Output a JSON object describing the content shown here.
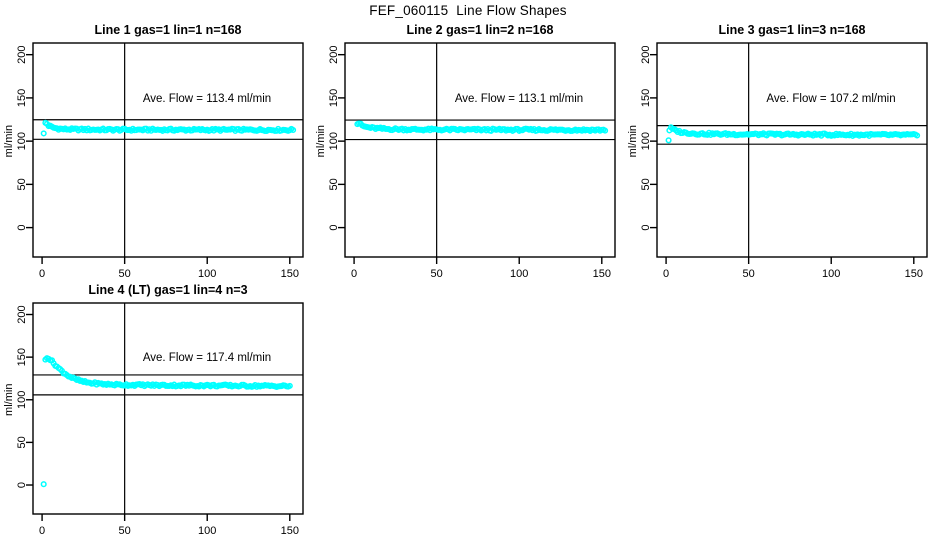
{
  "page": {
    "title": "FEF_060115  Line Flow Shapes"
  },
  "colors": {
    "marker": "#00ffff",
    "axis": "#000000",
    "background": "#ffffff"
  },
  "chart_data": [
    {
      "type": "scatter",
      "title": "Line 1 gas=1 lin=1 n=168",
      "annotation": "Ave. Flow =  113.4  ml/min",
      "ave_flow_ml_min": 113.4,
      "n_points": 168,
      "ylabel": "ml/min",
      "xlabel": "",
      "xticks": [
        0,
        50,
        100,
        150
      ],
      "yticks": [
        0,
        50,
        100,
        150,
        200
      ],
      "xlim": [
        -5.5,
        158
      ],
      "ylim": [
        -34,
        213.5
      ],
      "vline_x": 50,
      "hlines_y": [
        124.7,
        102.1
      ],
      "curve_anchors": [
        [
          1.5,
          118
        ],
        [
          2,
          121
        ],
        [
          3,
          120
        ],
        [
          4,
          118
        ],
        [
          6,
          116
        ],
        [
          8,
          115
        ],
        [
          12,
          114
        ],
        [
          20,
          113.5
        ],
        [
          40,
          113.2
        ],
        [
          80,
          113.1
        ],
        [
          120,
          113
        ],
        [
          152,
          113
        ]
      ],
      "outliers": [
        [
          1,
          109
        ]
      ]
    },
    {
      "type": "scatter",
      "title": "Line 2 gas=1 lin=2 n=168",
      "annotation": "Ave. Flow =  113.1  ml/min",
      "ave_flow_ml_min": 113.1,
      "n_points": 168,
      "ylabel": "ml/min",
      "xlabel": "",
      "xticks": [
        0,
        50,
        100,
        150
      ],
      "yticks": [
        0,
        50,
        100,
        150,
        200
      ],
      "xlim": [
        -5.5,
        158
      ],
      "ylim": [
        -34,
        213.5
      ],
      "vline_x": 50,
      "hlines_y": [
        124.4,
        101.8
      ],
      "curve_anchors": [
        [
          2,
          120
        ],
        [
          3,
          121
        ],
        [
          4,
          119
        ],
        [
          6,
          117
        ],
        [
          8,
          116
        ],
        [
          12,
          115
        ],
        [
          20,
          114
        ],
        [
          40,
          113.3
        ],
        [
          80,
          113.1
        ],
        [
          120,
          113
        ],
        [
          152,
          112.9
        ]
      ],
      "outliers": []
    },
    {
      "type": "scatter",
      "title": "Line 3 gas=1 lin=3 n=168",
      "annotation": "Ave. Flow =  107.2  ml/min",
      "ave_flow_ml_min": 107.2,
      "n_points": 168,
      "ylabel": "ml/min",
      "xlabel": "",
      "xticks": [
        0,
        50,
        100,
        150
      ],
      "yticks": [
        0,
        50,
        100,
        150,
        200
      ],
      "xlim": [
        -5.5,
        158
      ],
      "ylim": [
        -34,
        213.5
      ],
      "vline_x": 50,
      "hlines_y": [
        117.9,
        96.5
      ],
      "curve_anchors": [
        [
          2,
          113
        ],
        [
          3,
          115
        ],
        [
          4,
          114
        ],
        [
          6,
          112
        ],
        [
          10,
          110
        ],
        [
          20,
          108.5
        ],
        [
          40,
          108
        ],
        [
          80,
          107.6
        ],
        [
          120,
          107.3
        ],
        [
          152,
          107
        ]
      ],
      "outliers": [
        [
          1.5,
          101
        ]
      ]
    },
    {
      "type": "scatter",
      "title": "Line 4 (LT) gas=1 lin=4 n=3",
      "annotation": "Ave. Flow =  117.4  ml/min",
      "ave_flow_ml_min": 117.4,
      "n_points": 3,
      "ylabel": "ml/min",
      "xlabel": "",
      "xticks": [
        0,
        50,
        100,
        150
      ],
      "yticks": [
        0,
        50,
        100,
        150,
        200
      ],
      "xlim": [
        -5.5,
        158
      ],
      "ylim": [
        -34,
        213.5
      ],
      "vline_x": 50,
      "hlines_y": [
        129.1,
        105.7
      ],
      "curve_anchors": [
        [
          2,
          147
        ],
        [
          3,
          150
        ],
        [
          4,
          149
        ],
        [
          6,
          145
        ],
        [
          8,
          141
        ],
        [
          10,
          137
        ],
        [
          13,
          132
        ],
        [
          16,
          128
        ],
        [
          20,
          124
        ],
        [
          25,
          121
        ],
        [
          30,
          119.5
        ],
        [
          40,
          118
        ],
        [
          50,
          117.5
        ],
        [
          70,
          117
        ],
        [
          100,
          116.7
        ],
        [
          130,
          116.3
        ],
        [
          150,
          116
        ]
      ],
      "outliers": [
        [
          1,
          1
        ]
      ]
    }
  ]
}
